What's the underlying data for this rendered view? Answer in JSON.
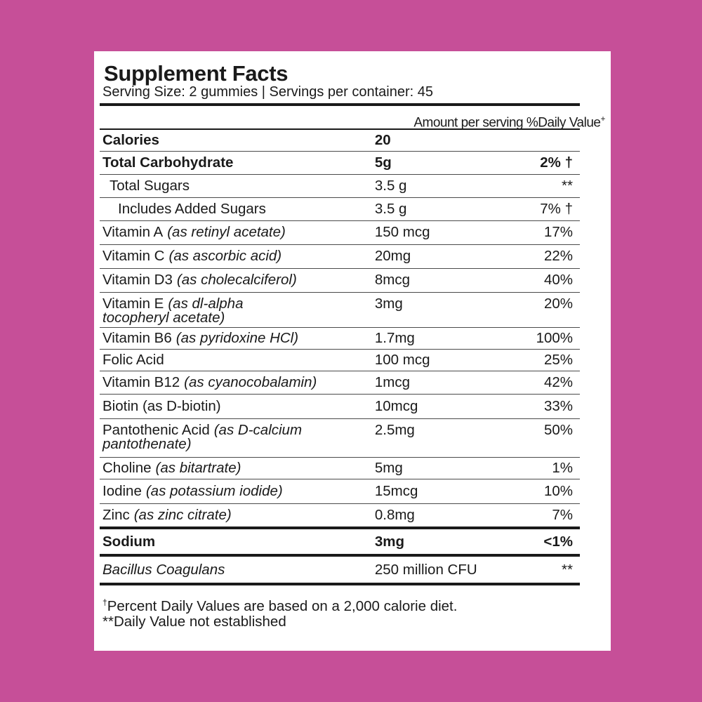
{
  "label": {
    "title": "Supplement Facts",
    "serving_info": "Serving Size: 2 gummies | Servings per container: 45",
    "header_amount": "Amount per serving",
    "header_dv": "%Daily Value",
    "header_dv_mark": "+",
    "rows": [
      {
        "name": "Calories",
        "qual": "",
        "amount": "20",
        "dv": ""
      },
      {
        "name": "Total Carbohydrate",
        "qual": "",
        "amount": "5g",
        "dv": "2% †"
      },
      {
        "name": "Total Sugars",
        "qual": "",
        "amount": "3.5 g",
        "dv": "**"
      },
      {
        "name": "Includes Added Sugars",
        "qual": "",
        "amount": "3.5 g",
        "dv": "7% †"
      },
      {
        "name": "Vitamin A",
        "qual": "(as retinyl acetate)",
        "amount": "150 mcg",
        "dv": "17%"
      },
      {
        "name": "Vitamin C",
        "qual": "(as ascorbic acid)",
        "amount": "20mg",
        "dv": "22%"
      },
      {
        "name": "Vitamin D3",
        "qual": "(as cholecalciferol)",
        "amount": "8mcg",
        "dv": "40%"
      },
      {
        "name": "Vitamin E",
        "qual": "(as dl-alpha",
        "qual2": "tocopheryl acetate)",
        "amount": "3mg",
        "dv": "20%"
      },
      {
        "name": "Vitamin B6",
        "qual": "(as pyridoxine HCl)",
        "amount": "1.7mg",
        "dv": "100%"
      },
      {
        "name": "Folic Acid",
        "qual": "",
        "amount": "100 mcg",
        "dv": "25%"
      },
      {
        "name": "Vitamin B12",
        "qual": "(as cyanocobalamin)",
        "amount": "1mcg",
        "dv": "42%"
      },
      {
        "name": "Biotin (as D-biotin)",
        "qual": "",
        "amount": "10mcg",
        "dv": "33%"
      },
      {
        "name": "Pantothenic Acid",
        "qual": "(as D-calcium",
        "qual2": "pantothenate)",
        "amount": "2.5mg",
        "dv": "50%"
      },
      {
        "name": "Choline",
        "qual": "(as bitartrate)",
        "amount": "5mg",
        "dv": "1%"
      },
      {
        "name": "Iodine",
        "qual": "(as potassium iodide)",
        "amount": "15mcg",
        "dv": "10%"
      },
      {
        "name": "Zinc",
        "qual": "(as zinc citrate)",
        "amount": "0.8mg",
        "dv": "7%"
      },
      {
        "name": "Sodium",
        "qual": "",
        "amount": "3mg",
        "dv": "<1%"
      },
      {
        "name": "Bacillus Coagulans",
        "qual": "",
        "amount": "250 million CFU",
        "dv": "**"
      }
    ],
    "footnote_mark": "†",
    "footnote_1": "Percent Daily Values are based on a 2,000 calorie diet.",
    "footnote_2": "**Daily Value not established"
  }
}
